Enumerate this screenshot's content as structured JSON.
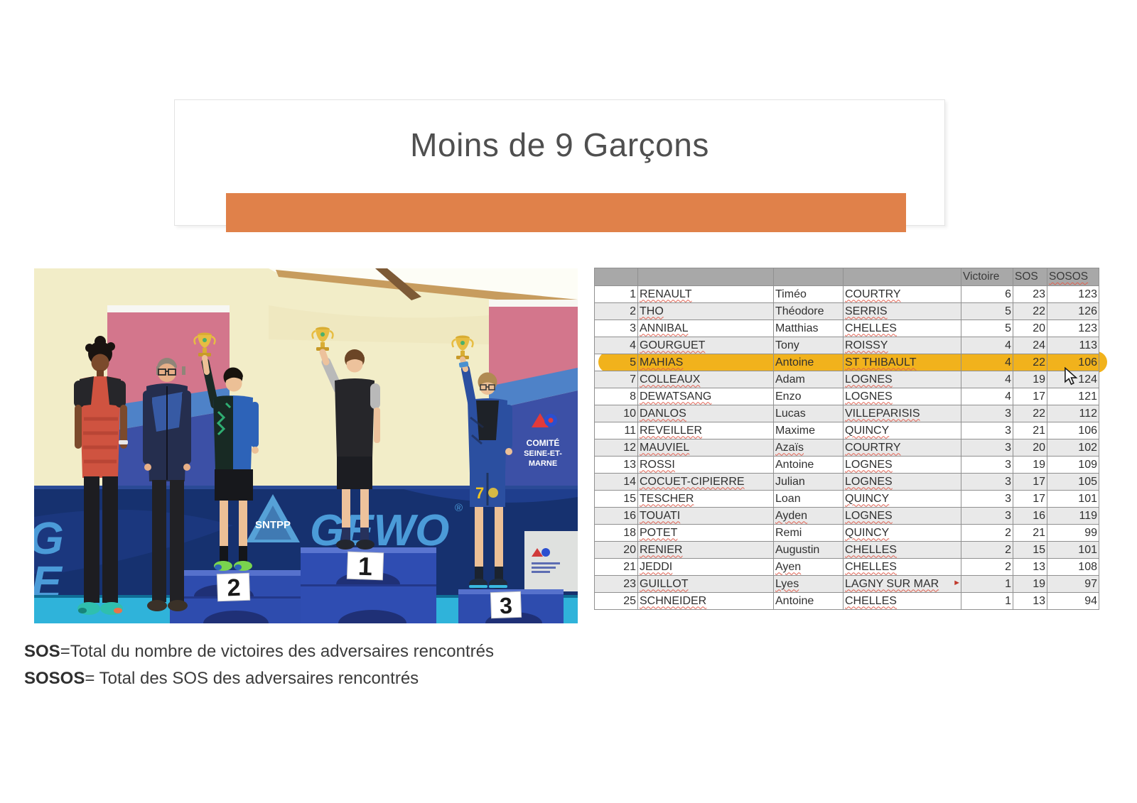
{
  "title": {
    "text": "Moins de 9 Garçons"
  },
  "accent_bar": {
    "color": "#e0814a"
  },
  "footnotes": {
    "line1_term": "SOS",
    "line1_text": "=Total du nombre de victoires des adversaires rencontrés",
    "line2_term": "SOSOS",
    "line2_text": "= Total des SOS des adversaires rencontrés"
  },
  "ranking_table": {
    "headers": {
      "victoire": "Victoire",
      "sos": "SOS",
      "sosos": "SOSOS"
    },
    "highlight": {
      "rank": "5",
      "color": "#f1b21c"
    },
    "overflow_marker": "►",
    "rows": [
      {
        "rank": "1",
        "last": "RENAULT",
        "first": "Timéo",
        "club": "COURTRY",
        "victoire": "6",
        "sos": "23",
        "sosos": "123"
      },
      {
        "rank": "2",
        "last": "THO",
        "first": "Théodore",
        "club": "SERRIS",
        "victoire": "5",
        "sos": "22",
        "sosos": "126"
      },
      {
        "rank": "3",
        "last": "ANNIBAL",
        "first": "Matthias",
        "club": "CHELLES",
        "victoire": "5",
        "sos": "20",
        "sosos": "123"
      },
      {
        "rank": "4",
        "last": "GOURGUET",
        "first": "Tony",
        "club": "ROISSY",
        "victoire": "4",
        "sos": "24",
        "sosos": "113"
      },
      {
        "rank": "5",
        "last": "MAHIAS",
        "first": "Antoine",
        "club": "ST THIBAULT",
        "victoire": "4",
        "sos": "22",
        "sosos": "106"
      },
      {
        "rank": "7",
        "last": "COLLEAUX",
        "first": "Adam",
        "club": "LOGNES",
        "victoire": "4",
        "sos": "19",
        "sosos": "124"
      },
      {
        "rank": "8",
        "last": "DEWATSANG",
        "first": "Enzo",
        "club": "LOGNES",
        "victoire": "4",
        "sos": "17",
        "sosos": "121"
      },
      {
        "rank": "10",
        "last": "DANLOS",
        "first": "Lucas",
        "club": "VILLEPARISIS",
        "victoire": "3",
        "sos": "22",
        "sosos": "112"
      },
      {
        "rank": "11",
        "last": "REVEILLER",
        "first": "Maxime",
        "club": "QUINCY",
        "victoire": "3",
        "sos": "21",
        "sosos": "106"
      },
      {
        "rank": "12",
        "last": "MAUVIEL",
        "first": "Azaïs",
        "club": "COURTRY",
        "victoire": "3",
        "sos": "20",
        "sosos": "102",
        "wavy_first": true
      },
      {
        "rank": "13",
        "last": "ROSSI",
        "first": "Antoine",
        "club": "LOGNES",
        "victoire": "3",
        "sos": "19",
        "sosos": "109"
      },
      {
        "rank": "14",
        "last": "COCUET-CIPIERRE",
        "first": "Julian",
        "club": "LOGNES",
        "victoire": "3",
        "sos": "17",
        "sosos": "105"
      },
      {
        "rank": "15",
        "last": "TESCHER",
        "first": "Loan",
        "club": "QUINCY",
        "victoire": "3",
        "sos": "17",
        "sosos": "101"
      },
      {
        "rank": "16",
        "last": "TOUATI",
        "first": "Ayden",
        "club": "LOGNES",
        "victoire": "3",
        "sos": "16",
        "sosos": "119",
        "wavy_first": true
      },
      {
        "rank": "18",
        "last": "POTET",
        "first": "Remi",
        "club": "QUINCY",
        "victoire": "2",
        "sos": "21",
        "sosos": "99"
      },
      {
        "rank": "20",
        "last": "RENIER",
        "first": "Augustin",
        "club": "CHELLES",
        "victoire": "2",
        "sos": "15",
        "sosos": "101"
      },
      {
        "rank": "21",
        "last": "JEDDI",
        "first": "Ayen",
        "club": "CHELLES",
        "victoire": "2",
        "sos": "13",
        "sosos": "108",
        "wavy_first": true
      },
      {
        "rank": "23",
        "last": "GUILLOT",
        "first": "Lyes",
        "club": "LAGNY SUR MAR",
        "victoire": "1",
        "sos": "19",
        "sosos": "97",
        "wavy_first": true,
        "club_truncated": true
      },
      {
        "rank": "25",
        "last": "SCHNEIDER",
        "first": "Antoine",
        "club": "CHELLES",
        "victoire": "1",
        "sos": "13",
        "sosos": "94"
      }
    ]
  },
  "photo": {
    "ge_top": "G",
    "ge_bottom": "E",
    "gewo_text": "GEWO",
    "reg_mark": "®",
    "sntpp_text": "SNTPP",
    "comite_line1": "COMITÉ",
    "comite_line2": "SEINE-ET-",
    "comite_line3": "MARNE",
    "podium_1": "1",
    "podium_2": "2",
    "podium_3": "3",
    "jersey_number": "7"
  }
}
